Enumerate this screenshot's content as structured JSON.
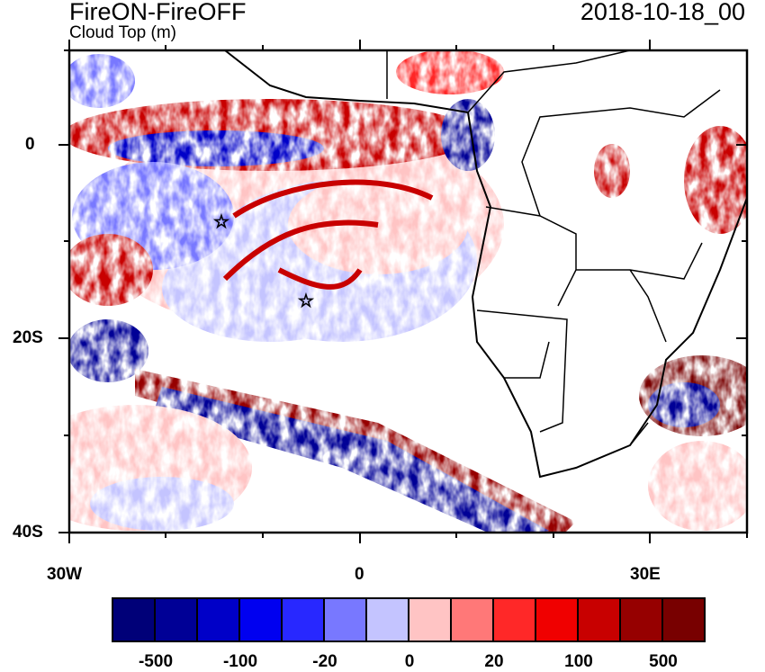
{
  "title": "FireON-FireOFF",
  "subtitle": "Cloud Top (m)",
  "date": "2018-10-18_00",
  "axes": {
    "lat_labels": [
      "0",
      "20S",
      "40S"
    ],
    "lon_labels": [
      "30W",
      "0",
      "30E"
    ]
  },
  "colorbar": {
    "colors": [
      "#000078",
      "#000096",
      "#0000c8",
      "#0000f0",
      "#2828ff",
      "#7878ff",
      "#c4c4ff",
      "#ffc4c4",
      "#ff7878",
      "#ff2828",
      "#f00000",
      "#c80000",
      "#960000",
      "#780000"
    ],
    "labels": [
      "-500",
      "-100",
      "-20",
      "0",
      "20",
      "100",
      "500"
    ]
  },
  "markers": [
    {
      "type": "star",
      "lon": -14.5,
      "lat": -8
    },
    {
      "type": "star",
      "lon": -5.7,
      "lat": -16
    }
  ]
}
